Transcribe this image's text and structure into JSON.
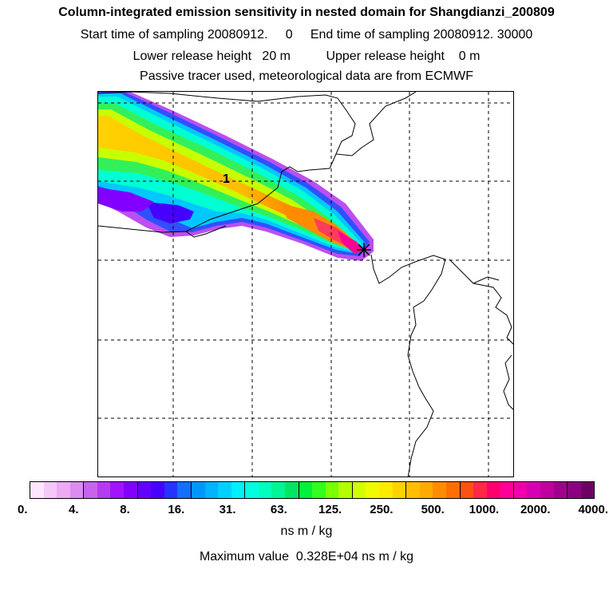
{
  "header": {
    "title": "Column-integrated emission sensitivity in nested domain for Shangdianzi_200809",
    "sampling_line": "Start time of sampling 20080912.     0     End time of sampling 20080912. 30000",
    "release_line": "Lower release height   20 m          Upper release height    0 m",
    "tracer_line": "Passive tracer used, meteorological data are from ECMWF"
  },
  "map": {
    "day_marker_label": "1",
    "receptor_marker": "receptor-star",
    "plume_colors": [
      "#9a00ff",
      "#2222ff",
      "#00b4ff",
      "#00ffd2",
      "#00f060",
      "#c8ff00",
      "#ffd200",
      "#ff9600",
      "#ff3c3c",
      "#ff0096"
    ]
  },
  "colorbar": {
    "colors": [
      "#ffe6ff",
      "#f5c8f8",
      "#eeaaf5",
      "#dc8cf0",
      "#c864eb",
      "#b43cf0",
      "#a014ff",
      "#8200ff",
      "#6400ff",
      "#4600ff",
      "#2832ff",
      "#146eff",
      "#0096ff",
      "#00b4ff",
      "#00d2ff",
      "#00f0ff",
      "#00ffe1",
      "#00ffbe",
      "#00f596",
      "#00e664",
      "#00f03c",
      "#32ff1e",
      "#78ff00",
      "#b4ff00",
      "#d2ff00",
      "#f0fa00",
      "#ffeb00",
      "#ffd200",
      "#ffbe00",
      "#ffaa00",
      "#ff8c00",
      "#ff6e00",
      "#ff5014",
      "#ff2846",
      "#ff006e",
      "#ff0096",
      "#f000aa",
      "#d700b4",
      "#be00a0",
      "#a0008c",
      "#8c0082",
      "#6e0064"
    ],
    "tick_labels": [
      "0.",
      "4.",
      "8.",
      "16.",
      "31.",
      "63.",
      "125.",
      "250.",
      "500.",
      "1000.",
      "2000.",
      "4000."
    ],
    "units": "ns m / kg",
    "max_value_text": "Maximum value  0.328E+04 ns m / kg"
  }
}
